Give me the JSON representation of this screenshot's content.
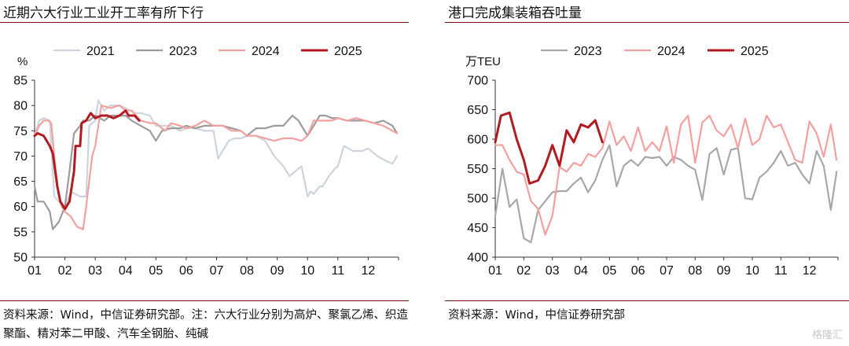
{
  "left": {
    "title": "近期六大行业工业开工率有所下行",
    "source": "资料来源：Wind，中信证券研究部。注：六大行业分别为高炉、聚氯乙烯、织造聚酯、精对苯二甲酸、汽车全钢胎、纯碱"
  },
  "right": {
    "title": "港口完成集装箱吞吐量",
    "source": "资料来源：Wind，中信证券研究部"
  },
  "watermark": "格隆汇",
  "chart_data": [
    {
      "type": "line",
      "title": "近期六大行业工业开工率有所下行",
      "ylabel": "%",
      "ylim": [
        50,
        85
      ],
      "yticks": [
        50,
        55,
        60,
        65,
        70,
        75,
        80,
        85
      ],
      "xlim": [
        1,
        13
      ],
      "xticks": [
        "01",
        "02",
        "03",
        "04",
        "05",
        "06",
        "07",
        "08",
        "09",
        "10",
        "11",
        "12"
      ],
      "grid": false,
      "legend_position": "top",
      "series": [
        {
          "name": "2021",
          "color": "#cdd4de",
          "width": 2.2,
          "x": [
            1,
            1.15,
            1.3,
            1.5,
            1.65,
            1.8,
            2,
            2.2,
            2.5,
            2.7,
            2.8,
            3,
            3.1,
            3.3,
            3.5,
            3.8,
            4,
            4.3,
            4.5,
            4.8,
            5,
            5.2,
            5.5,
            5.8,
            6,
            6.3,
            6.6,
            6.9,
            7.05,
            7.2,
            7.4,
            7.6,
            7.8,
            8,
            8.3,
            8.6,
            8.9,
            9.2,
            9.4,
            9.6,
            9.8,
            10,
            10.1,
            10.2,
            10.4,
            10.5,
            10.7,
            10.9,
            11,
            11.2,
            11.5,
            11.8,
            12,
            12.3,
            12.6,
            12.8,
            12.95
          ],
          "y": [
            74,
            77,
            77.5,
            77,
            62,
            61,
            60,
            63,
            62,
            62,
            76,
            77,
            81,
            79,
            80,
            80,
            79.5,
            78.5,
            78.5,
            78,
            76,
            76,
            76,
            75,
            75.5,
            75.5,
            75,
            75,
            69.5,
            71,
            73,
            73.5,
            73.5,
            74,
            74,
            73,
            70,
            68,
            66,
            67,
            68,
            62,
            63,
            62.5,
            64,
            64,
            66,
            67.5,
            68,
            72,
            71,
            71,
            71.5,
            70,
            69,
            68.5,
            70
          ]
        },
        {
          "name": "2023",
          "color": "#9c9c9c",
          "width": 2.2,
          "x": [
            1,
            1.1,
            1.3,
            1.5,
            1.6,
            1.8,
            2,
            2.15,
            2.3,
            2.5,
            2.6,
            2.8,
            3,
            3.3,
            3.5,
            3.8,
            4,
            4.2,
            4.5,
            4.8,
            5,
            5.2,
            5.5,
            5.8,
            6,
            6.3,
            6.6,
            6.9,
            7.2,
            7.5,
            7.8,
            8,
            8.3,
            8.6,
            8.9,
            9.2,
            9.5,
            9.7,
            9.9,
            10,
            10.2,
            10.4,
            10.6,
            10.8,
            11,
            11.3,
            11.6,
            11.9,
            12.2,
            12.5,
            12.8,
            12.95
          ],
          "y": [
            64,
            61,
            61,
            59,
            55.5,
            57,
            60,
            67,
            74.5,
            76,
            77,
            77,
            78,
            77,
            78,
            78,
            78,
            77,
            76,
            75,
            73,
            75,
            75.5,
            75.5,
            76,
            75.5,
            76,
            76,
            76,
            75.5,
            75,
            74,
            75.5,
            75.5,
            76,
            76,
            78,
            77,
            75,
            74,
            76,
            78,
            78,
            77.5,
            77.5,
            77,
            77,
            77,
            76.5,
            77,
            76,
            74.5
          ]
        },
        {
          "name": "2024",
          "color": "#f4a0a0",
          "width": 2.2,
          "x": [
            1,
            1.15,
            1.3,
            1.45,
            1.55,
            1.7,
            1.8,
            1.9,
            2,
            2.2,
            2.4,
            2.6,
            2.7,
            2.9,
            3,
            3.2,
            3.5,
            3.8,
            4,
            4.2,
            4.5,
            4.8,
            5,
            5.3,
            5.5,
            5.8,
            6,
            6.3,
            6.6,
            6.9,
            7.2,
            7.5,
            7.8,
            8,
            8.3,
            8.6,
            8.9,
            9.2,
            9.5,
            9.8,
            10,
            10.2,
            10.5,
            10.8,
            11,
            11.3,
            11.6,
            11.9,
            12.2,
            12.5,
            12.8,
            12.95
          ],
          "y": [
            74,
            76,
            77,
            77,
            76.5,
            67,
            62,
            60,
            59,
            58,
            56,
            55.5,
            60,
            70,
            72,
            80,
            79.5,
            80,
            79,
            79,
            77,
            76.5,
            76.5,
            75,
            76.5,
            76,
            75.5,
            76,
            77,
            76,
            76,
            75,
            75,
            74,
            74,
            73.5,
            73,
            73.5,
            73.5,
            73,
            74,
            77,
            77,
            77,
            77.5,
            77,
            77.5,
            77,
            76.5,
            76,
            75,
            74.5
          ]
        },
        {
          "name": "2025",
          "color": "#b11c22",
          "width": 3,
          "x": [
            1,
            1.1,
            1.3,
            1.5,
            1.6,
            1.75,
            1.85,
            2,
            2.15,
            2.3,
            2.35,
            2.5,
            2.55,
            2.7,
            2.85,
            3,
            3.2,
            3.4,
            3.6,
            3.8,
            4,
            4.1,
            4.3,
            4.45
          ],
          "y": [
            74,
            74.5,
            74,
            72,
            70.5,
            64,
            61,
            59.5,
            61,
            67,
            72,
            72,
            76.5,
            77,
            78.5,
            77.5,
            78,
            78,
            77.5,
            78,
            79,
            78,
            78,
            77
          ]
        }
      ]
    },
    {
      "type": "line",
      "title": "港口完成集装箱吞吐量",
      "ylabel": "万TEU",
      "ylim": [
        400,
        700
      ],
      "yticks": [
        400,
        450,
        500,
        550,
        600,
        650,
        700
      ],
      "xlim": [
        1,
        13
      ],
      "xticks": [
        "01",
        "02",
        "03",
        "04",
        "05",
        "06",
        "07",
        "08",
        "09",
        "10",
        "11",
        "12"
      ],
      "grid": false,
      "legend_position": "top",
      "series": [
        {
          "name": "2023",
          "color": "#a8a8a8",
          "width": 2.2,
          "x": [
            1,
            1.25,
            1.5,
            1.75,
            2,
            2.25,
            2.5,
            2.75,
            3,
            3.25,
            3.5,
            3.75,
            4,
            4.25,
            4.5,
            4.75,
            5,
            5.25,
            5.5,
            5.75,
            6,
            6.25,
            6.5,
            6.75,
            7,
            7.25,
            7.5,
            7.75,
            8,
            8.25,
            8.5,
            8.75,
            9,
            9.25,
            9.5,
            9.75,
            10,
            10.25,
            10.5,
            10.75,
            11,
            11.25,
            11.5,
            11.75,
            12,
            12.25,
            12.5,
            12.75,
            12.95
          ],
          "y": [
            470,
            550,
            485,
            498,
            432,
            425,
            480,
            495,
            510,
            512,
            512,
            525,
            535,
            510,
            530,
            565,
            590,
            520,
            555,
            565,
            555,
            570,
            568,
            570,
            555,
            570,
            565,
            555,
            548,
            497,
            575,
            585,
            540,
            582,
            585,
            500,
            498,
            535,
            545,
            560,
            580,
            555,
            560,
            540,
            525,
            580,
            555,
            480,
            545
          ]
        },
        {
          "name": "2024",
          "color": "#f4a0a0",
          "width": 2.2,
          "x": [
            1,
            1.25,
            1.5,
            1.75,
            2,
            2.25,
            2.5,
            2.75,
            3,
            3.25,
            3.5,
            3.75,
            4,
            4.25,
            4.5,
            4.75,
            5,
            5.25,
            5.5,
            5.75,
            6,
            6.25,
            6.5,
            6.75,
            7,
            7.25,
            7.5,
            7.75,
            8,
            8.25,
            8.5,
            8.75,
            9,
            9.25,
            9.5,
            9.75,
            10,
            10.25,
            10.5,
            10.75,
            11,
            11.25,
            11.5,
            11.75,
            12,
            12.25,
            12.5,
            12.75,
            12.95
          ],
          "y": [
            590,
            590,
            565,
            545,
            540,
            495,
            482,
            438,
            470,
            553,
            545,
            560,
            555,
            575,
            570,
            585,
            630,
            590,
            605,
            580,
            620,
            580,
            595,
            580,
            622,
            560,
            625,
            640,
            560,
            628,
            640,
            615,
            605,
            625,
            585,
            635,
            590,
            600,
            640,
            620,
            625,
            595,
            565,
            560,
            630,
            610,
            570,
            625,
            565
          ]
        },
        {
          "name": "2025",
          "color": "#b11c22",
          "width": 3,
          "x": [
            1,
            1.2,
            1.5,
            1.75,
            2,
            2.2,
            2.5,
            2.75,
            3,
            3.25,
            3.5,
            3.75,
            4,
            4.25,
            4.5,
            4.75
          ],
          "y": [
            595,
            640,
            645,
            600,
            565,
            525,
            530,
            555,
            590,
            555,
            615,
            595,
            625,
            620,
            632,
            595
          ]
        }
      ]
    }
  ]
}
